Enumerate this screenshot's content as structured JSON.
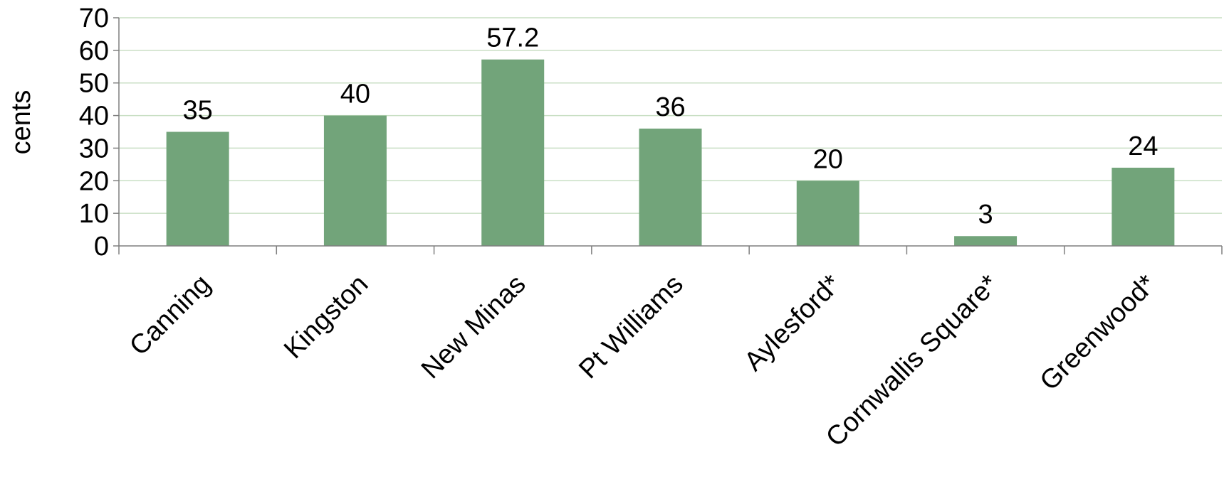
{
  "chart_data": {
    "type": "bar",
    "title": "",
    "xlabel": "",
    "ylabel": "cents",
    "ylim": [
      0,
      70
    ],
    "yticks": [
      0,
      10,
      20,
      30,
      40,
      50,
      60,
      70
    ],
    "grid": true,
    "legend": "none",
    "categories": [
      "Canning",
      "Kingston",
      "New Minas",
      "Pt Williams",
      "Aylesford*",
      "Cornwallis Square*",
      "Greenwood*"
    ],
    "values": [
      35,
      40,
      57.2,
      36,
      20,
      3,
      24
    ],
    "data_labels": [
      "35",
      "40",
      "57.2",
      "36",
      "20",
      "3",
      "24"
    ],
    "colors": {
      "bar": "#72a47a",
      "grid": "#c9dfc4",
      "axis": "#7f7f7f"
    }
  }
}
